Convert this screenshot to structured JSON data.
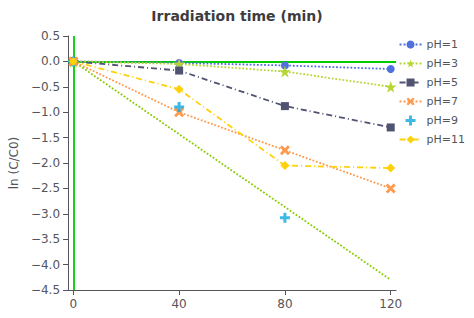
{
  "chart_data": {
    "type": "line",
    "title": "Irradiation time (min)",
    "y_label": "ln (C/C0)",
    "xlim": [
      -2,
      122
    ],
    "ylim": [
      -4.5,
      0.5
    ],
    "xticks": [
      0,
      40,
      80,
      120
    ],
    "yticks": [
      {
        "value": 0.5,
        "label": "0.5"
      },
      {
        "value": 0,
        "label": "0.0"
      },
      {
        "value": -0.5,
        "label": "−0.5"
      },
      {
        "value": -1,
        "label": "−1.0"
      },
      {
        "value": -1.5,
        "label": "−1.5"
      },
      {
        "value": -2,
        "label": "−2.0"
      },
      {
        "value": -2.5,
        "label": "−2.5"
      },
      {
        "value": -3,
        "label": "−3.0"
      },
      {
        "value": -3.5,
        "label": "−3.5"
      },
      {
        "value": -4,
        "label": "−4.0"
      },
      {
        "value": -4.5,
        "label": "−4.5"
      }
    ],
    "grid": false,
    "legend": "right",
    "series": [
      {
        "name": "pH=1",
        "x": [
          0,
          40,
          80,
          120
        ],
        "values": [
          0,
          -0.03,
          -0.08,
          -0.15
        ],
        "marker": "circle",
        "line_style": "dotted"
      },
      {
        "name": "pH=3",
        "x": [
          0,
          40,
          80,
          120
        ],
        "values": [
          0,
          -0.05,
          -0.2,
          -0.5
        ],
        "marker": "star",
        "line_style": "dotted"
      },
      {
        "name": "pH=5",
        "x": [
          0,
          40,
          80,
          120
        ],
        "values": [
          0,
          -0.18,
          -0.88,
          -1.3
        ],
        "marker": "square",
        "line_style": "dashdot"
      },
      {
        "name": "pH=7",
        "x": [
          0,
          40,
          80,
          120
        ],
        "values": [
          0,
          -1.0,
          -1.75,
          -2.5
        ],
        "marker": "x",
        "line_style": "dotted"
      },
      {
        "name": "pH=9",
        "type": "scatter",
        "x": [
          0,
          40,
          80
        ],
        "values": [
          0,
          -0.9,
          -3.08
        ],
        "marker": "plus"
      },
      {
        "name": "pH=11",
        "x": [
          0,
          40,
          80,
          120
        ],
        "values": [
          0,
          -0.55,
          -2.05,
          -2.1
        ],
        "marker": "diamond",
        "line_style": "dashdot"
      }
    ],
    "trend_lines": [
      {
        "x": [
          0,
          120
        ],
        "values": [
          0,
          -4.3
        ],
        "color": "#88cc00",
        "line_style": "dotted"
      }
    ],
    "vlines": [
      {
        "value": 0,
        "color": "#00cc00"
      }
    ],
    "hlines": [
      {
        "value": 0,
        "color": "#00cc00"
      }
    ]
  }
}
